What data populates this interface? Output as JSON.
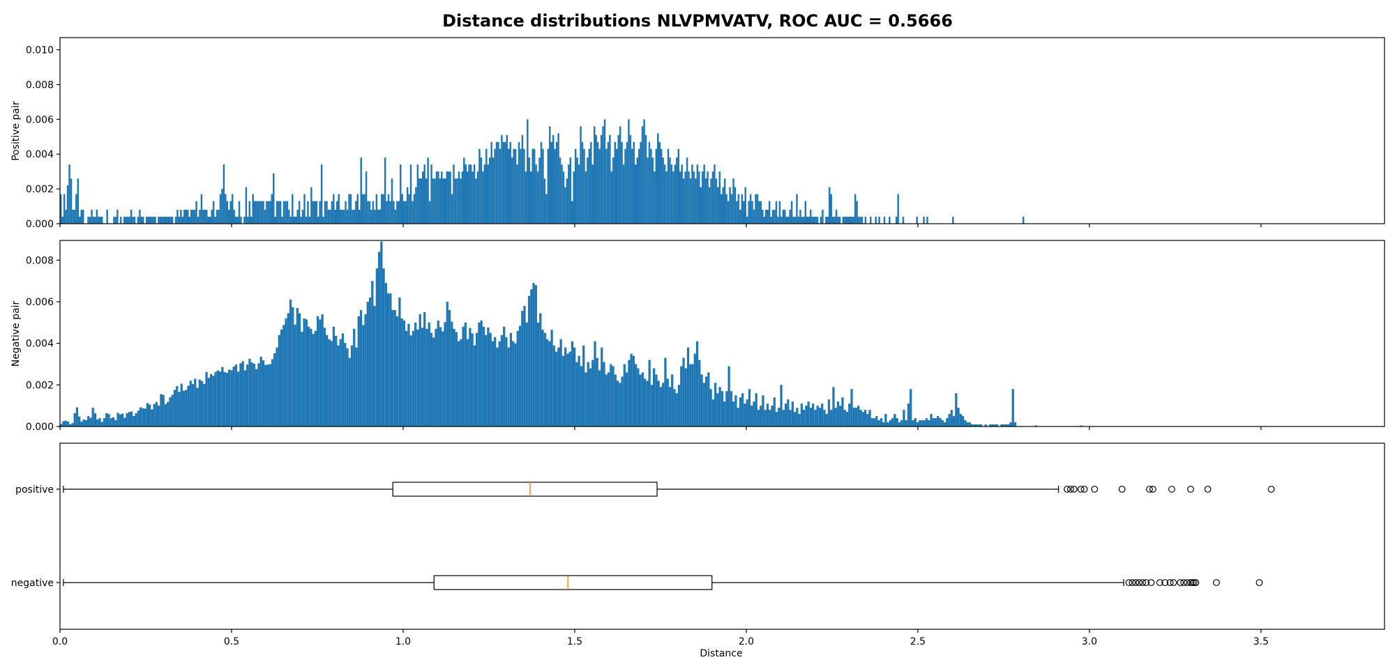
{
  "figure": {
    "title": "Distance distributions NLVPMVATV, ROC AUC = 0.5666"
  },
  "chart_data": [
    {
      "type": "bar",
      "name": "positive-histogram",
      "ylabel": "Positive pair",
      "xlabel": "",
      "xlim": [
        0.0,
        3.86
      ],
      "ylim": [
        0.0,
        0.0107
      ],
      "yticks": [
        0.0,
        0.002,
        0.004,
        0.006,
        0.008,
        0.01
      ],
      "ytick_labels": [
        "0.000",
        "0.002",
        "0.004",
        "0.006",
        "0.008",
        "0.010"
      ],
      "xticks": [
        0.0,
        0.5,
        1.0,
        1.5,
        2.0,
        2.5,
        3.0,
        3.5
      ],
      "color": "#1f77b4",
      "bin_start": 0.0,
      "bin_width": 0.005,
      "values": [
        0.0017,
        0.0004,
        0.0017,
        0.0008,
        0.0022,
        0.0034,
        0.0026,
        0.0008,
        0.0008,
        0.0017,
        0.0026,
        0.0004,
        0.0008,
        0.0008,
        0,
        0,
        0.0004,
        0.0004,
        0.0008,
        0.0004,
        0.0004,
        0.0008,
        0.0004,
        0.0004,
        0.0004,
        0,
        0,
        0.0008,
        0,
        0,
        0,
        0.0004,
        0.0004,
        0.0008,
        0,
        0.0004,
        0,
        0.0004,
        0.0004,
        0.0004,
        0.0004,
        0.0008,
        0.0004,
        0.0004,
        0,
        0.0004,
        0.0008,
        0.0004,
        0.0004,
        0,
        0.0004,
        0.0004,
        0.0004,
        0.0004,
        0.0004,
        0.0004,
        0,
        0.0004,
        0.0004,
        0.0004,
        0.0004,
        0.0004,
        0.0004,
        0.0004,
        0.0004,
        0.0004,
        0,
        0.0004,
        0.0008,
        0.0004,
        0.0008,
        0.0004,
        0.0008,
        0.0008,
        0.0008,
        0.0004,
        0.0008,
        0.0008,
        0.0008,
        0.0013,
        0.0004,
        0.0008,
        0.0017,
        0.0008,
        0.0008,
        0.0008,
        0.0004,
        0.0004,
        0.0008,
        0.0013,
        0.0004,
        0.0008,
        0.0008,
        0.0017,
        0.002,
        0.0034,
        0.0017,
        0.0013,
        0.0008,
        0.0013,
        0.0017,
        0.0008,
        0.0004,
        0.0004,
        0.0013,
        0.0004,
        0,
        0.0004,
        0.0021,
        0.0004,
        0.0013,
        0.0004,
        0.0017,
        0.0013,
        0.0013,
        0.0013,
        0.0013,
        0.0013,
        0.0013,
        0.0008,
        0.0013,
        0.0013,
        0.0013,
        0.0017,
        0.0029,
        0.0004,
        0.0013,
        0.0013,
        0.0013,
        0.0004,
        0.0013,
        0.0013,
        0.0013,
        0.0008,
        0.0004,
        0.0017,
        0.0004,
        0.0004,
        0.0008,
        0.0013,
        0.0004,
        0.0008,
        0.0017,
        0.0004,
        0.0013,
        0.0004,
        0.0021,
        0.0013,
        0.0013,
        0.0013,
        0.0004,
        0.0013,
        0.0034,
        0.0004,
        0.0013,
        0.0013,
        0.0008,
        0.0008,
        0.0013,
        0.0017,
        0.0008,
        0.0013,
        0.0017,
        0.0008,
        0.0008,
        0.0008,
        0.0013,
        0.0008,
        0.0017,
        0.0017,
        0.0008,
        0.0008,
        0.0013,
        0.0017,
        0.0008,
        0.0038,
        0.0017,
        0.0017,
        0.003,
        0.0013,
        0.0013,
        0.0008,
        0.0013,
        0.0008,
        0.0017,
        0.0008,
        0.0008,
        0.0017,
        0.0017,
        0.0038,
        0.0013,
        0.0017,
        0.0013,
        0.0026,
        0.0013,
        0.0008,
        0.0013,
        0.0013,
        0.0034,
        0.0017,
        0.0013,
        0.0013,
        0.0021,
        0.0017,
        0.0034,
        0.0013,
        0.0017,
        0.0021,
        0.0034,
        0.0026,
        0.0026,
        0.003,
        0.0034,
        0.0026,
        0.0038,
        0.0013,
        0.0034,
        0.0026,
        0.0026,
        0.003,
        0.003,
        0.0026,
        0.003,
        0.0026,
        0.0026,
        0.003,
        0.003,
        0.003,
        0.0017,
        0.0034,
        0.0026,
        0.0026,
        0.003,
        0.0026,
        0.003,
        0.0038,
        0.0034,
        0.003,
        0.0034,
        0.0034,
        0.003,
        0.0034,
        0.0026,
        0.003,
        0.0043,
        0.0038,
        0.003,
        0.0034,
        0.0043,
        0.0034,
        0.0038,
        0.0047,
        0.0038,
        0.0043,
        0.0047,
        0.0047,
        0.0043,
        0.0051,
        0.0047,
        0.0047,
        0.0051,
        0.0043,
        0.0047,
        0.0038,
        0.0043,
        0.0043,
        0.0034,
        0.0047,
        0.0043,
        0.0051,
        0.0043,
        0.003,
        0.006,
        0.0038,
        0.003,
        0.0043,
        0.0043,
        0.0034,
        0.003,
        0.0038,
        0.0047,
        0.0043,
        0.0026,
        0.0017,
        0.0043,
        0.0056,
        0.0047,
        0.0051,
        0.0043,
        0.0047,
        0.0052,
        0.0038,
        0.0034,
        0.003,
        0.0021,
        0.0026,
        0.0034,
        0.0038,
        0.0013,
        0.003,
        0.0043,
        0.0038,
        0.0034,
        0.0056,
        0.0047,
        0.0043,
        0.003,
        0.0038,
        0.0043,
        0.0047,
        0.0034,
        0.0056,
        0.0051,
        0.0047,
        0.0043,
        0.0051,
        0.0056,
        0.006,
        0.0043,
        0.0047,
        0.0051,
        0.003,
        0.0038,
        0.0047,
        0.0043,
        0.0051,
        0.0056,
        0.0047,
        0.0034,
        0.0043,
        0.0047,
        0.006,
        0.0051,
        0.0043,
        0.0047,
        0.0034,
        0.0038,
        0.0043,
        0.0047,
        0.0056,
        0.006,
        0.0051,
        0.0038,
        0.0047,
        0.0043,
        0.0038,
        0.003,
        0.0043,
        0.0052,
        0.0047,
        0.0043,
        0.0038,
        0.0034,
        0.003,
        0.0043,
        0.0038,
        0.0034,
        0.003,
        0.0034,
        0.0038,
        0.0043,
        0.003,
        0.0034,
        0.0026,
        0.003,
        0.0038,
        0.003,
        0.0026,
        0.0034,
        0.003,
        0.0026,
        0.0034,
        0.003,
        0.0021,
        0.003,
        0.0034,
        0.0026,
        0.003,
        0.0021,
        0.0026,
        0.003,
        0.0034,
        0.0026,
        0.0021,
        0.003,
        0.0017,
        0.0021,
        0.0026,
        0.0017,
        0.0013,
        0.0021,
        0.0017,
        0.0026,
        0.0021,
        0.0013,
        0.0017,
        0.0008,
        0.0017,
        0.0013,
        0.0021,
        0.0004,
        0.0013,
        0.0017,
        0.0013,
        0.0008,
        0.0017,
        0.0017,
        0.0013,
        0.0013,
        0.0008,
        0.0004,
        0.0008,
        0.0008,
        0.0013,
        0.0004,
        0.0008,
        0.0008,
        0.0013,
        0.0004,
        0.0013,
        0.0004,
        0.0008,
        0.0008,
        0.0004,
        0.0004,
        0.0008,
        0.0013,
        0.0004,
        0.0004,
        0.0017,
        0.0004,
        0.0008,
        0.0004,
        0.0004,
        0.0013,
        0.0004,
        0.0004,
        0.0008,
        0.0004,
        0.0004,
        0.0004,
        0.0004,
        0,
        0.0004,
        0.0008,
        0,
        0.0004,
        0.0004,
        0.0021,
        0.0017,
        0.0004,
        0.0004,
        0.0008,
        0.0004,
        0.0004,
        0,
        0.0004,
        0.0004,
        0.0004,
        0.0004,
        0.0004,
        0.0004,
        0.0004,
        0.0017,
        0.0013,
        0.0004,
        0.0004,
        0.0004,
        0,
        0.0004,
        0,
        0,
        0.0004,
        0,
        0,
        0.0004,
        0,
        0.0004,
        0,
        0,
        0.0004,
        0,
        0,
        0.0004,
        0,
        0,
        0,
        0.0004,
        0.0017,
        0,
        0,
        0.0004,
        0,
        0,
        0,
        0,
        0,
        0,
        0,
        0.0004,
        0,
        0,
        0,
        0.0004,
        0,
        0.0004,
        0,
        0,
        0,
        0,
        0,
        0,
        0,
        0,
        0,
        0,
        0,
        0,
        0,
        0,
        0.0004,
        0,
        0,
        0,
        0,
        0,
        0,
        0,
        0,
        0,
        0,
        0,
        0,
        0,
        0,
        0,
        0,
        0,
        0,
        0,
        0,
        0,
        0,
        0,
        0,
        0,
        0,
        0,
        0,
        0,
        0,
        0,
        0,
        0,
        0,
        0,
        0,
        0,
        0,
        0,
        0,
        0.0004
      ]
    },
    {
      "type": "bar",
      "name": "negative-histogram",
      "ylabel": "Negative pair",
      "xlabel": "",
      "xlim": [
        0.0,
        3.86
      ],
      "ylim": [
        0.0,
        0.00895
      ],
      "yticks": [
        0.0,
        0.002,
        0.004,
        0.006,
        0.008
      ],
      "ytick_labels": [
        "0.000",
        "0.002",
        "0.004",
        "0.006",
        "0.008"
      ],
      "xticks": [
        0.0,
        0.5,
        1.0,
        1.5,
        2.0,
        2.5,
        3.0,
        3.5
      ],
      "color": "#1f77b4",
      "bin_start": 0.0,
      "bin_width": 0.00662,
      "values": [
        0.00012,
        0.00026,
        0.00028,
        0.00024,
        0.0001,
        0.00016,
        0.00064,
        0.00092,
        0.00048,
        0.00024,
        0.00034,
        0.0003,
        0.0005,
        0.00042,
        0.0009,
        0.00064,
        0.00034,
        0.0004,
        0.00022,
        0.0004,
        0.00064,
        0.0006,
        0.0004,
        0.00044,
        0.0003,
        0.00066,
        0.00058,
        0.00062,
        0.00042,
        0.00064,
        0.0007,
        0.00072,
        0.0005,
        0.00064,
        0.00076,
        0.00092,
        0.00088,
        0.00086,
        0.00112,
        0.00106,
        0.00082,
        0.00108,
        0.00118,
        0.001,
        0.00156,
        0.00152,
        0.00108,
        0.00118,
        0.0014,
        0.00152,
        0.00176,
        0.00194,
        0.00166,
        0.00206,
        0.00172,
        0.00176,
        0.00196,
        0.0022,
        0.00204,
        0.0023,
        0.00186,
        0.00226,
        0.00218,
        0.00204,
        0.00262,
        0.00234,
        0.00252,
        0.00244,
        0.00262,
        0.0027,
        0.00264,
        0.00286,
        0.00262,
        0.00258,
        0.00274,
        0.0027,
        0.00288,
        0.00298,
        0.00264,
        0.00304,
        0.00314,
        0.0027,
        0.00298,
        0.00326,
        0.00308,
        0.00302,
        0.00276,
        0.00304,
        0.00336,
        0.00318,
        0.00296,
        0.00298,
        0.003,
        0.00324,
        0.00352,
        0.0038,
        0.0044,
        0.00466,
        0.00488,
        0.0052,
        0.00545,
        0.0061,
        0.00574,
        0.0049,
        0.0057,
        0.00544,
        0.00455,
        0.0052,
        0.00515,
        0.0048,
        0.0047,
        0.00445,
        0.0046,
        0.0053,
        0.00515,
        0.0054,
        0.00475,
        0.0044,
        0.0042,
        0.00412,
        0.0048,
        0.00436,
        0.0039,
        0.0042,
        0.00448,
        0.00402,
        0.00376,
        0.0033,
        0.0039,
        0.0047,
        0.0038,
        0.0053,
        0.0056,
        0.00488,
        0.0054,
        0.006,
        0.0062,
        0.007,
        0.0058,
        0.0076,
        0.0084,
        0.0089,
        0.0076,
        0.0069,
        0.0064,
        0.0064,
        0.0056,
        0.0056,
        0.0053,
        0.0062,
        0.0052,
        0.0051,
        0.0046,
        0.00494,
        0.00438,
        0.0046,
        0.005,
        0.00466,
        0.0054,
        0.00475,
        0.0055,
        0.0047,
        0.005,
        0.0045,
        0.00428,
        0.0047,
        0.0051,
        0.00478,
        0.00458,
        0.00502,
        0.006,
        0.0056,
        0.00504,
        0.0047,
        0.00454,
        0.0041,
        0.0042,
        0.0048,
        0.005,
        0.0042,
        0.00474,
        0.00448,
        0.0039,
        0.0045,
        0.005,
        0.0051,
        0.0048,
        0.0044,
        0.00476,
        0.0045,
        0.0041,
        0.0043,
        0.0038,
        0.0041,
        0.0044,
        0.0048,
        0.0043,
        0.0038,
        0.0045,
        0.0041,
        0.004,
        0.0046,
        0.00484,
        0.00556,
        0.0058,
        0.005,
        0.00628,
        0.0066,
        0.0069,
        0.0068,
        0.005,
        0.00545,
        0.00465,
        0.0045,
        0.0042,
        0.0041,
        0.00465,
        0.0039,
        0.0036,
        0.0038,
        0.0042,
        0.0034,
        0.0038,
        0.0035,
        0.0036,
        0.0041,
        0.0038,
        0.0031,
        0.0034,
        0.0029,
        0.0039,
        0.0026,
        0.0031,
        0.0028,
        0.0032,
        0.0041,
        0.0033,
        0.0027,
        0.0038,
        0.0031,
        0.0025,
        0.0026,
        0.003,
        0.0029,
        0.0025,
        0.0022,
        0.0021,
        0.0024,
        0.003,
        0.0026,
        0.0032,
        0.0035,
        0.0034,
        0.003,
        0.0028,
        0.0025,
        0.0026,
        0.0023,
        0.0022,
        0.0032,
        0.002,
        0.0028,
        0.0025,
        0.0022,
        0.0019,
        0.0021,
        0.0033,
        0.0023,
        0.0019,
        0.0025,
        0.0018,
        0.0016,
        0.002,
        0.0029,
        0.0033,
        0.0028,
        0.0038,
        0.003,
        0.003,
        0.0035,
        0.0041,
        0.0032,
        0.0025,
        0.0021,
        0.0024,
        0.0026,
        0.0018,
        0.0013,
        0.0021,
        0.0016,
        0.0019,
        0.0017,
        0.0012,
        0.0017,
        0.0029,
        0.0017,
        0.0012,
        0.0015,
        0.0009,
        0.0014,
        0.0016,
        0.0011,
        0.0013,
        0.0018,
        0.001,
        0.0012,
        0.0016,
        0.0008,
        0.001,
        0.0015,
        0.0008,
        0.0011,
        0.0008,
        0.001,
        0.0014,
        0.0007,
        0.0009,
        0.002,
        0.0008,
        0.0011,
        0.0013,
        0.0008,
        0.0012,
        0.0007,
        0.0009,
        0.0006,
        0.0011,
        0.0008,
        0.001,
        0.0012,
        0.0009,
        0.0011,
        0.0008,
        0.001,
        0.0009,
        0.0011,
        0.0008,
        0.0006,
        0.0013,
        0.0008,
        0.0019,
        0.0009,
        0.0012,
        0.001,
        0.0014,
        0.0008,
        0.0007,
        0.0011,
        0.0018,
        0.0009,
        0.0009,
        0.001,
        0.0008,
        0.0007,
        0.0008,
        0.0006,
        0.0008,
        0.0004,
        0.0004,
        0.0005,
        0.0003,
        0.0004,
        0.0002,
        0.0006,
        0.0002,
        0.0003,
        0.0004,
        0.0006,
        0.0004,
        0.0002,
        0.0003,
        0.0008,
        0.0003,
        0.0011,
        0.0018,
        0.0003,
        0.0004,
        0.0002,
        0.0003,
        0.0003,
        0.0003,
        0.0004,
        0.0003,
        0.0006,
        0.0004,
        0.0004,
        0.0005,
        0.0004,
        0.0003,
        0.0002,
        0.0004,
        0.0006,
        0.0008,
        0.0005,
        0.0016,
        0.0009,
        0.0006,
        0.0005,
        0.0003,
        0.0002,
        0.0002,
        0.0001,
        0.0001,
        0.0001,
        0.0001,
        0.0001,
        0,
        0.0001,
        0,
        0.0001,
        0.0001,
        0.0001,
        0.0001,
        0,
        0.0001,
        0.0001,
        0.0001,
        0.0001,
        0.0002,
        0.0018,
        0.0002,
        0,
        0,
        0,
        0,
        0,
        0,
        0,
        0,
        5e-05,
        0,
        0,
        0,
        0,
        0,
        0,
        0,
        0,
        0,
        0,
        0,
        0,
        0,
        0,
        0,
        0,
        0,
        0,
        0,
        5e-05
      ]
    },
    {
      "type": "boxplot",
      "name": "distance-boxplot",
      "xlabel": "Distance",
      "xlim": [
        0.0,
        3.86
      ],
      "xticks": [
        0.0,
        0.5,
        1.0,
        1.5,
        2.0,
        2.5,
        3.0,
        3.5
      ],
      "xtick_labels": [
        "0.0",
        "0.5",
        "1.0",
        "1.5",
        "2.0",
        "2.5",
        "3.0",
        "3.5"
      ],
      "median_color": "#ff7f0e",
      "series": [
        {
          "name": "positive",
          "whisker_low": 0.01,
          "q1": 0.97,
          "median": 1.37,
          "q3": 1.74,
          "whisker_high": 2.91,
          "fliers": [
            2.935,
            2.945,
            2.955,
            2.975,
            2.985,
            3.015,
            3.095,
            3.175,
            3.185,
            3.24,
            3.295,
            3.345,
            3.53
          ]
        },
        {
          "name": "negative",
          "whisker_low": 0.01,
          "q1": 1.09,
          "median": 1.48,
          "q3": 1.9,
          "whisker_high": 3.1,
          "fliers": [
            3.115,
            3.125,
            3.135,
            3.145,
            3.155,
            3.165,
            3.18,
            3.205,
            3.22,
            3.235,
            3.245,
            3.265,
            3.275,
            3.285,
            3.295,
            3.3,
            3.305,
            3.31,
            3.37,
            3.495
          ]
        }
      ]
    }
  ]
}
